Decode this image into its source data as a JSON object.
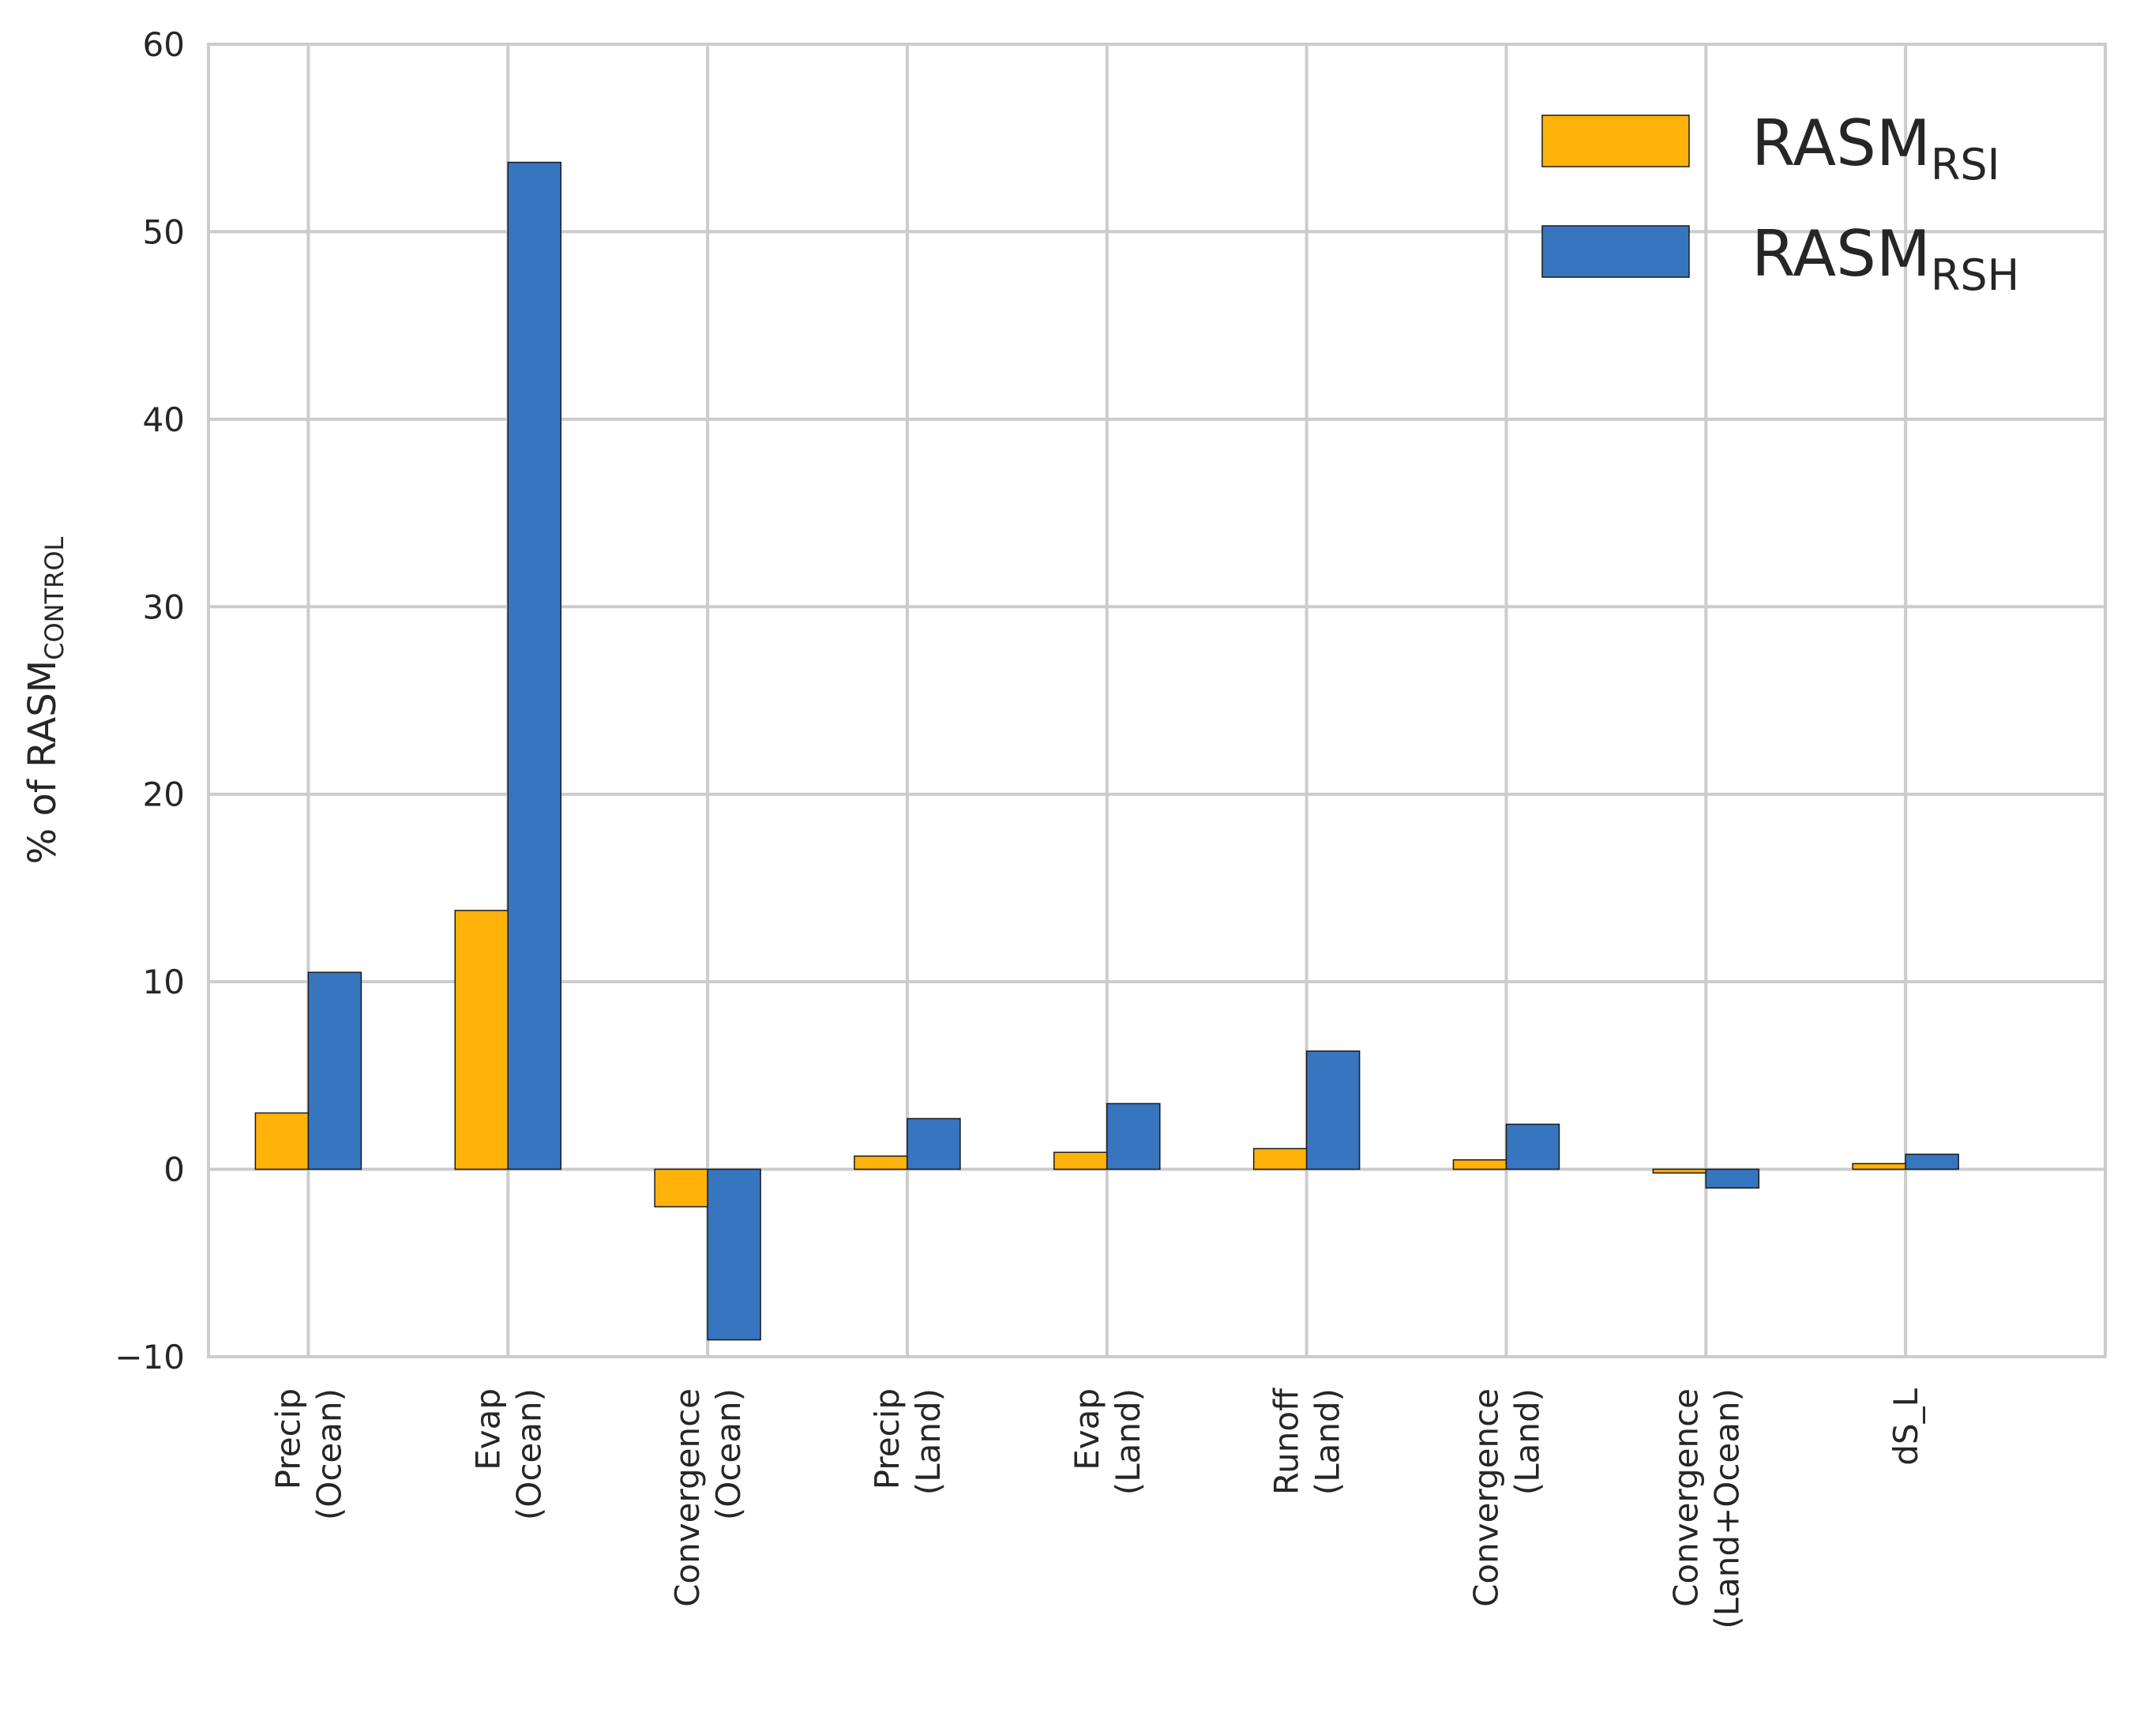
{
  "chart_data": {
    "type": "bar",
    "ylabel": "% of RASM",
    "ylabel_subscript": "CONTROL",
    "ylim": [
      -10,
      60
    ],
    "yticks": [
      -10,
      0,
      10,
      20,
      30,
      40,
      50,
      60
    ],
    "ytick_labels": [
      "−10",
      "0",
      "10",
      "20",
      "30",
      "40",
      "50",
      "60"
    ],
    "grid": true,
    "legend_position": "top-right",
    "categories": [
      [
        "Precip",
        "(Ocean)"
      ],
      [
        "Evap",
        "(Ocean)"
      ],
      [
        "Convergence",
        "(Ocean)"
      ],
      [
        "Precip",
        "(Land)"
      ],
      [
        "Evap",
        "(Land)"
      ],
      [
        "Runoff",
        "(Land)"
      ],
      [
        "Convergence",
        "(Land)"
      ],
      [
        "Convergence",
        "(Land+Ocean)"
      ],
      [
        "dS_L"
      ]
    ],
    "series": [
      {
        "name": "RASM",
        "subscript": "RSI",
        "color": "#ffb20a",
        "values": [
          3.0,
          13.8,
          -2.0,
          0.7,
          0.9,
          1.1,
          0.5,
          -0.2,
          0.3
        ]
      },
      {
        "name": "RASM",
        "subscript": "RSH",
        "color": "#3776bf",
        "values": [
          10.5,
          53.7,
          -9.1,
          2.7,
          3.5,
          6.3,
          2.4,
          -1.0,
          0.8
        ]
      }
    ]
  }
}
